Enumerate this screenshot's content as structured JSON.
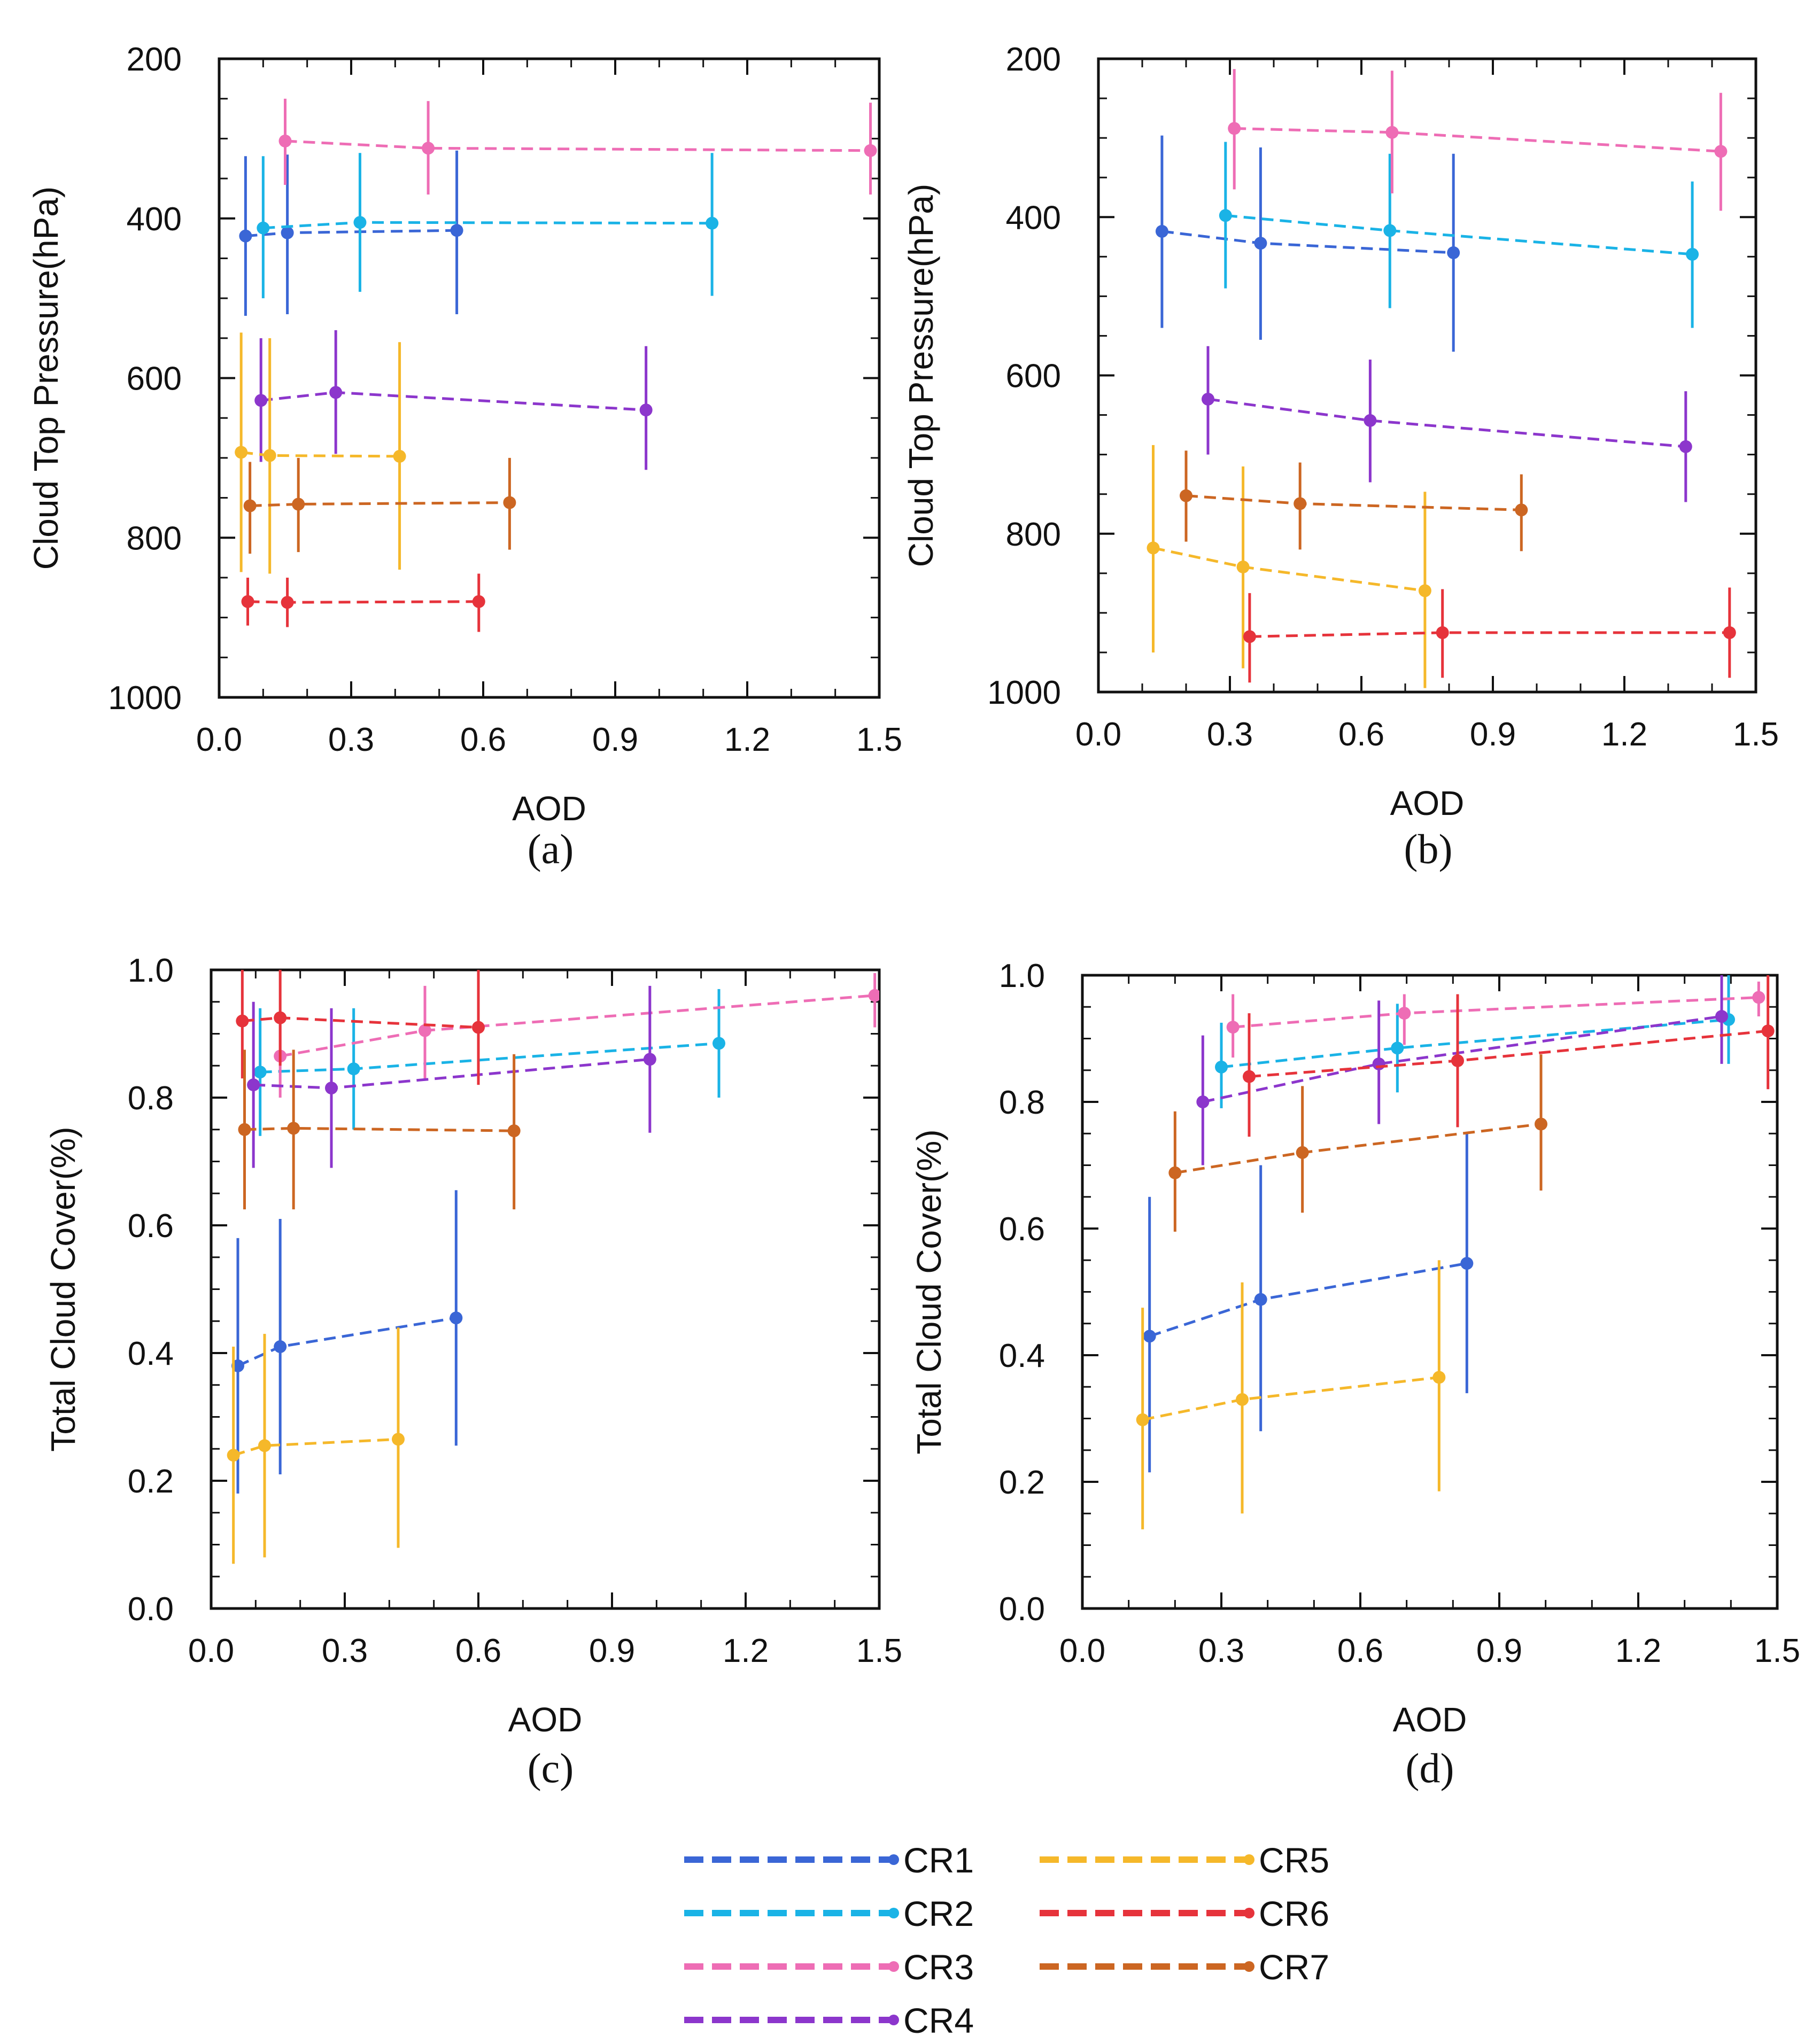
{
  "colors": {
    "CR1": "#3a66d6",
    "CR2": "#1ab3e6",
    "CR3": "#ee6db5",
    "CR4": "#8c36cc",
    "CR5": "#f5b82a",
    "CR6": "#e6333b",
    "CR7": "#cc6622"
  },
  "legend": [
    "CR1",
    "CR2",
    "CR3",
    "CR4",
    "CR5",
    "CR6",
    "CR7"
  ],
  "chart_data": [
    {
      "panel": "(a)",
      "type": "line",
      "xlabel": "AOD",
      "ylabel": "Cloud Top Pressure(hPa)",
      "xlim": [
        0,
        1.5
      ],
      "ylim": [
        200,
        1000
      ],
      "y_inverted": true,
      "xticks": [
        "0.0",
        "0.3",
        "0.6",
        "0.9",
        "1.2",
        "1.5"
      ],
      "yticks": [
        "200",
        "400",
        "600",
        "800",
        "1000"
      ],
      "series": [
        {
          "name": "CR1",
          "x": [
            0.06,
            0.155,
            0.54
          ],
          "y": [
            422,
            418,
            415
          ],
          "yerr": [
            [
              322,
              522
            ],
            [
              320,
              520
            ],
            [
              315,
              520
            ]
          ]
        },
        {
          "name": "CR2",
          "x": [
            0.1,
            0.32,
            1.12
          ],
          "y": [
            412,
            405,
            406
          ],
          "yerr": [
            [
              322,
              500
            ],
            [
              318,
              492
            ],
            [
              318,
              497
            ]
          ]
        },
        {
          "name": "CR3",
          "x": [
            0.15,
            0.475,
            1.48
          ],
          "y": [
            303,
            312,
            315
          ],
          "yerr": [
            [
              250,
              358
            ],
            [
              253,
              370
            ],
            [
              255,
              370
            ]
          ]
        },
        {
          "name": "CR4",
          "x": [
            0.095,
            0.265,
            0.97
          ],
          "y": [
            628,
            618,
            640
          ],
          "yerr": [
            [
              550,
              705
            ],
            [
              540,
              695
            ],
            [
              560,
              715
            ]
          ]
        },
        {
          "name": "CR5",
          "x": [
            0.05,
            0.115,
            0.41
          ],
          "y": [
            693,
            697,
            698
          ],
          "yerr": [
            [
              543,
              843
            ],
            [
              550,
              845
            ],
            [
              555,
              840
            ]
          ]
        },
        {
          "name": "CR6",
          "x": [
            0.065,
            0.155,
            0.59
          ],
          "y": [
            880,
            881,
            880
          ],
          "yerr": [
            [
              850,
              910
            ],
            [
              850,
              912
            ],
            [
              845,
              918
            ]
          ]
        },
        {
          "name": "CR7",
          "x": [
            0.07,
            0.18,
            0.66
          ],
          "y": [
            760,
            758,
            756
          ],
          "yerr": [
            [
              705,
              820
            ],
            [
              700,
              818
            ],
            [
              700,
              815
            ]
          ]
        }
      ]
    },
    {
      "panel": "(b)",
      "type": "line",
      "xlabel": "AOD",
      "ylabel": "Cloud Top Pressure(hPa)",
      "xlim": [
        0,
        1.5
      ],
      "ylim": [
        200,
        1000
      ],
      "y_inverted": true,
      "xticks": [
        "0.0",
        "0.3",
        "0.6",
        "0.9",
        "1.2",
        "1.5"
      ],
      "yticks": [
        "200",
        "400",
        "600",
        "800",
        "1000"
      ],
      "series": [
        {
          "name": "CR1",
          "x": [
            0.145,
            0.37,
            0.81
          ],
          "y": [
            418,
            433,
            445
          ],
          "yerr": [
            [
              297,
              540
            ],
            [
              312,
              555
            ],
            [
              320,
              570
            ]
          ]
        },
        {
          "name": "CR2",
          "x": [
            0.29,
            0.665,
            1.355
          ],
          "y": [
            398,
            417,
            447
          ],
          "yerr": [
            [
              305,
              490
            ],
            [
              320,
              515
            ],
            [
              355,
              540
            ]
          ]
        },
        {
          "name": "CR3",
          "x": [
            0.31,
            0.67,
            1.42
          ],
          "y": [
            288,
            293,
            317
          ],
          "yerr": [
            [
              213,
              365
            ],
            [
              215,
              370
            ],
            [
              243,
              392
            ]
          ]
        },
        {
          "name": "CR4",
          "x": [
            0.25,
            0.62,
            1.34
          ],
          "y": [
            630,
            657,
            690
          ],
          "yerr": [
            [
              563,
              700
            ],
            [
              580,
              735
            ],
            [
              620,
              760
            ]
          ]
        },
        {
          "name": "CR5",
          "x": [
            0.125,
            0.33,
            0.745
          ],
          "y": [
            818,
            842,
            872
          ],
          "yerr": [
            [
              688,
              950
            ],
            [
              715,
              970
            ],
            [
              747,
              995
            ]
          ]
        },
        {
          "name": "CR6",
          "x": [
            0.345,
            0.785,
            1.44
          ],
          "y": [
            930,
            925,
            925
          ],
          "yerr": [
            [
              875,
              988
            ],
            [
              870,
              982
            ],
            [
              868,
              982
            ]
          ]
        },
        {
          "name": "CR7",
          "x": [
            0.2,
            0.46,
            0.965
          ],
          "y": [
            752,
            762,
            770
          ],
          "yerr": [
            [
              695,
              810
            ],
            [
              710,
              820
            ],
            [
              725,
              822
            ]
          ]
        }
      ]
    },
    {
      "panel": "(c)",
      "type": "line",
      "xlabel": "AOD",
      "ylabel": "Total Cloud Cover(%)",
      "xlim": [
        0,
        1.5
      ],
      "ylim": [
        0,
        1
      ],
      "xticks": [
        "0.0",
        "0.3",
        "0.6",
        "0.9",
        "1.2",
        "1.5"
      ],
      "yticks": [
        "0.0",
        "0.2",
        "0.4",
        "0.6",
        "0.8",
        "1.0"
      ],
      "series": [
        {
          "name": "CR1",
          "x": [
            0.06,
            0.155,
            0.55
          ],
          "y": [
            0.38,
            0.41,
            0.455
          ],
          "yerr": [
            [
              0.18,
              0.58
            ],
            [
              0.21,
              0.61
            ],
            [
              0.255,
              0.655
            ]
          ]
        },
        {
          "name": "CR2",
          "x": [
            0.11,
            0.32,
            1.14
          ],
          "y": [
            0.84,
            0.845,
            0.885
          ],
          "yerr": [
            [
              0.74,
              0.94
            ],
            [
              0.75,
              0.94
            ],
            [
              0.8,
              0.97
            ]
          ]
        },
        {
          "name": "CR3",
          "x": [
            0.155,
            0.48,
            1.49
          ],
          "y": [
            0.865,
            0.905,
            0.96
          ],
          "yerr": [
            [
              0.8,
              0.93
            ],
            [
              0.83,
              0.975
            ],
            [
              0.91,
              0.995
            ]
          ]
        },
        {
          "name": "CR4",
          "x": [
            0.095,
            0.27,
            0.985
          ],
          "y": [
            0.82,
            0.815,
            0.86
          ],
          "yerr": [
            [
              0.69,
              0.95
            ],
            [
              0.69,
              0.94
            ],
            [
              0.745,
              0.975
            ]
          ]
        },
        {
          "name": "CR5",
          "x": [
            0.05,
            0.12,
            0.42
          ],
          "y": [
            0.24,
            0.255,
            0.265
          ],
          "yerr": [
            [
              0.07,
              0.41
            ],
            [
              0.08,
              0.43
            ],
            [
              0.095,
              0.44
            ]
          ]
        },
        {
          "name": "CR6",
          "x": [
            0.07,
            0.155,
            0.6
          ],
          "y": [
            0.92,
            0.925,
            0.91
          ],
          "yerr": [
            [
              0.83,
              1.0
            ],
            [
              0.85,
              1.0
            ],
            [
              0.82,
              1.0
            ]
          ]
        },
        {
          "name": "CR7",
          "x": [
            0.075,
            0.185,
            0.68
          ],
          "y": [
            0.75,
            0.752,
            0.748
          ],
          "yerr": [
            [
              0.625,
              0.875
            ],
            [
              0.625,
              0.875
            ],
            [
              0.625,
              0.868
            ]
          ]
        }
      ]
    },
    {
      "panel": "(d)",
      "type": "line",
      "xlabel": "AOD",
      "ylabel": "Total Cloud Cover(%)",
      "xlim": [
        0,
        1.5
      ],
      "ylim": [
        0,
        1
      ],
      "xticks": [
        "0.0",
        "0.3",
        "0.6",
        "0.9",
        "1.2",
        "1.5"
      ],
      "yticks": [
        "0.0",
        "0.2",
        "0.4",
        "0.6",
        "0.8",
        "1.0"
      ],
      "series": [
        {
          "name": "CR1",
          "x": [
            0.145,
            0.385,
            0.83
          ],
          "y": [
            0.43,
            0.488,
            0.545
          ],
          "yerr": [
            [
              0.215,
              0.65
            ],
            [
              0.28,
              0.7
            ],
            [
              0.34,
              0.75
            ]
          ]
        },
        {
          "name": "CR2",
          "x": [
            0.3,
            0.68,
            1.395
          ],
          "y": [
            0.855,
            0.885,
            0.93
          ],
          "yerr": [
            [
              0.79,
              0.925
            ],
            [
              0.815,
              0.955
            ],
            [
              0.86,
              1.0
            ]
          ]
        },
        {
          "name": "CR3",
          "x": [
            0.325,
            0.695,
            1.46
          ],
          "y": [
            0.918,
            0.94,
            0.965
          ],
          "yerr": [
            [
              0.87,
              0.97
            ],
            [
              0.89,
              0.97
            ],
            [
              0.935,
              0.99
            ]
          ]
        },
        {
          "name": "CR4",
          "x": [
            0.26,
            0.64,
            1.38
          ],
          "y": [
            0.8,
            0.86,
            0.935
          ],
          "yerr": [
            [
              0.7,
              0.905
            ],
            [
              0.765,
              0.96
            ],
            [
              0.86,
              1.0
            ]
          ]
        },
        {
          "name": "CR5",
          "x": [
            0.13,
            0.345,
            0.77
          ],
          "y": [
            0.298,
            0.33,
            0.365
          ],
          "yerr": [
            [
              0.125,
              0.475
            ],
            [
              0.15,
              0.515
            ],
            [
              0.185,
              0.55
            ]
          ]
        },
        {
          "name": "CR6",
          "x": [
            0.36,
            0.81,
            1.48
          ],
          "y": [
            0.84,
            0.865,
            0.912
          ],
          "yerr": [
            [
              0.745,
              0.94
            ],
            [
              0.76,
              0.97
            ],
            [
              0.82,
              1.0
            ]
          ]
        },
        {
          "name": "CR7",
          "x": [
            0.2,
            0.475,
            0.99
          ],
          "y": [
            0.688,
            0.72,
            0.765
          ],
          "yerr": [
            [
              0.595,
              0.785
            ],
            [
              0.625,
              0.825
            ],
            [
              0.66,
              0.875
            ]
          ]
        }
      ]
    }
  ]
}
